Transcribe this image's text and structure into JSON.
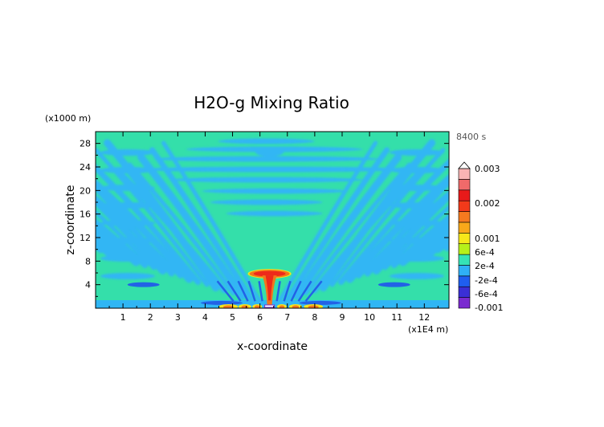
{
  "chart_data": {
    "type": "heatmap",
    "title": "H2O-g Mixing Ratio",
    "time_label": "8400 s",
    "xlabel": "x-coordinate",
    "ylabel": "z-coordinate",
    "x_unit_label": "(x1E4 m)",
    "y_unit_label": "(x1000 m)",
    "xlim": [
      0,
      12.9
    ],
    "ylim": [
      0,
      30
    ],
    "x_ticks": [
      "1",
      "2",
      "3",
      "4",
      "5",
      "6",
      "7",
      "8",
      "9",
      "10",
      "11",
      "12"
    ],
    "y_ticks": [
      "4",
      "8",
      "12",
      "16",
      "20",
      "24",
      "28"
    ],
    "colorbar": {
      "levels": [
        -0.001,
        -0.0006,
        -0.0002,
        0.0002,
        0.0006,
        0.001,
        0.002,
        0.003
      ],
      "labels": [
        "0.003",
        "0.002",
        "0.001",
        "6e-4",
        "2e-4",
        "-2e-4",
        "-6e-4",
        "-0.001"
      ],
      "colors": [
        "#7a2ad0",
        "#3a2fd6",
        "#1f5ef0",
        "#2fb0f6",
        "#35e3b6",
        "#b6f01a",
        "#f6e81a",
        "#f9a81a",
        "#f57a1f",
        "#f23a1a",
        "#e81a1a",
        "#f06a6a",
        "#f9b4b4"
      ]
    },
    "field_colors": {
      "background": "#34dfaa",
      "negative": "#30b6f4",
      "strong_negative": "#2262e6",
      "plume_outer": "#f2761c",
      "plume_inner": "#ee2a1a",
      "plume_edge": "#f5e41c"
    },
    "features": {
      "plume_center_x": 6.35,
      "plume_top_z": 6.4,
      "plume_base_z": 0.5
    }
  }
}
